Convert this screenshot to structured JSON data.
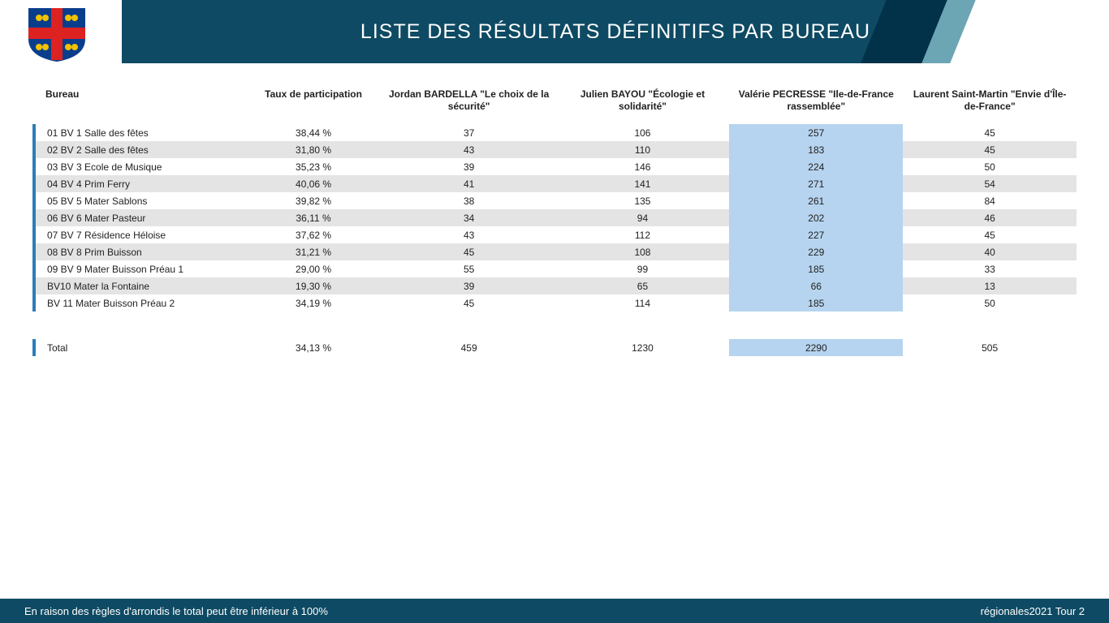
{
  "header": {
    "title": "LISTE DES RÉSULTATS DÉFINITIFS PAR BUREAU"
  },
  "colors": {
    "header_bg": "#0e4a63",
    "header_dark": "#02314a",
    "header_light": "#6ca6b5",
    "row_stripe": "#e4e4e4",
    "row_marker": "#2b7db8",
    "highlight": "#b6d4ef",
    "footer_bg": "#0e4a63"
  },
  "table": {
    "columns": {
      "bureau": "Bureau",
      "participation": "Taux de participation",
      "c1": "Jordan BARDELLA \"Le choix de la sécurité\"",
      "c2": "Julien BAYOU \"Écologie et solidarité\"",
      "c3": "Valérie PECRESSE \"Ile-de-France rassemblée\"",
      "c4": "Laurent Saint-Martin \"Envie d'Île-de-France\""
    },
    "highlight_column": "c3",
    "rows": [
      {
        "bureau": "01 BV 1 Salle des fêtes",
        "participation": "38,44 %",
        "c1": "37",
        "c2": "106",
        "c3": "257",
        "c4": "45"
      },
      {
        "bureau": "02 BV 2 Salle des fêtes",
        "participation": "31,80 %",
        "c1": "43",
        "c2": "110",
        "c3": "183",
        "c4": "45"
      },
      {
        "bureau": "03 BV 3 Ecole de Musique",
        "participation": "35,23 %",
        "c1": "39",
        "c2": "146",
        "c3": "224",
        "c4": "50"
      },
      {
        "bureau": "04 BV 4 Prim Ferry",
        "participation": "40,06 %",
        "c1": "41",
        "c2": "141",
        "c3": "271",
        "c4": "54"
      },
      {
        "bureau": "05 BV 5 Mater Sablons",
        "participation": "39,82 %",
        "c1": "38",
        "c2": "135",
        "c3": "261",
        "c4": "84"
      },
      {
        "bureau": "06 BV 6 Mater Pasteur",
        "participation": "36,11 %",
        "c1": "34",
        "c2": "94",
        "c3": "202",
        "c4": "46"
      },
      {
        "bureau": "07 BV 7 Résidence Héloise",
        "participation": "37,62 %",
        "c1": "43",
        "c2": "112",
        "c3": "227",
        "c4": "45"
      },
      {
        "bureau": "08 BV 8 Prim Buisson",
        "participation": "31,21 %",
        "c1": "45",
        "c2": "108",
        "c3": "229",
        "c4": "40"
      },
      {
        "bureau": "09 BV 9 Mater Buisson Préau 1",
        "participation": "29,00 %",
        "c1": "55",
        "c2": "99",
        "c3": "185",
        "c4": "33"
      },
      {
        "bureau": "BV10 Mater la Fontaine",
        "participation": "19,30 %",
        "c1": "39",
        "c2": "65",
        "c3": "66",
        "c4": "13"
      },
      {
        "bureau": "BV 11 Mater Buisson Préau 2",
        "participation": "34,19 %",
        "c1": "45",
        "c2": "114",
        "c3": "185",
        "c4": "50"
      }
    ],
    "total": {
      "bureau_label": "Total",
      "participation": "34,13 %",
      "c1": "459",
      "c2": "1230",
      "c3": "2290",
      "c4": "505"
    }
  },
  "footer": {
    "left": "En raison des règles d'arrondis le total peut être inférieur à 100%",
    "right": "régionales2021 Tour 2"
  }
}
